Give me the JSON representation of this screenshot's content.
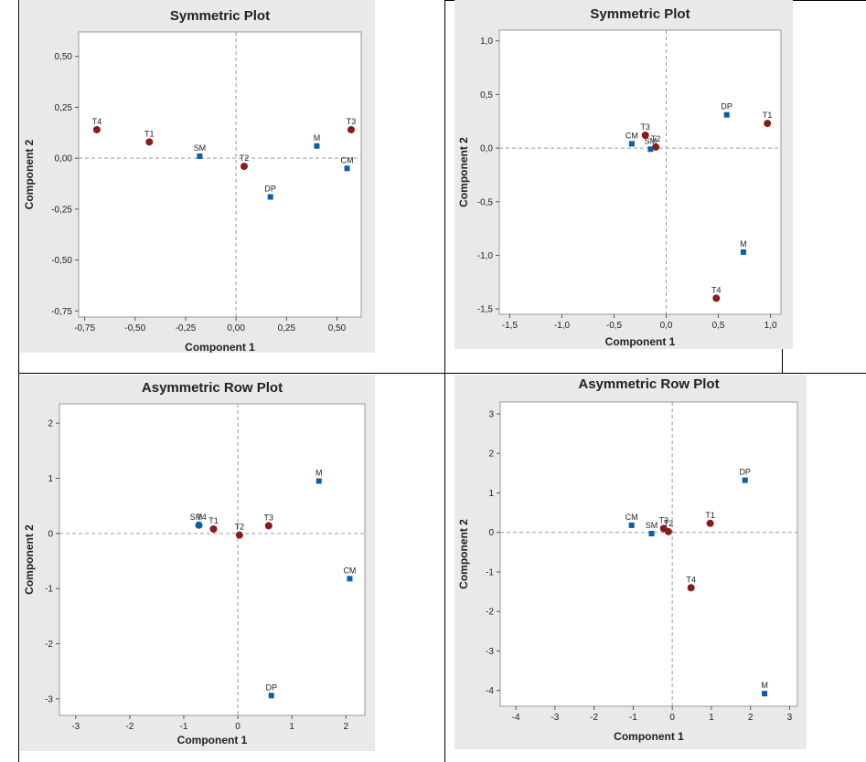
{
  "chart_data": [
    {
      "type": "scatter",
      "title": "Symmetric Plot",
      "xlabel": "Component 1",
      "ylabel": "Component 2",
      "xlim": [
        -0.78,
        0.62
      ],
      "ylim": [
        -0.78,
        0.62
      ],
      "xticks": [
        -0.75,
        -0.5,
        -0.25,
        0.0,
        0.25,
        0.5
      ],
      "xtick_labels": [
        "-0,75",
        "-0,50",
        "-0,25",
        "0,00",
        "0,25",
        "0,50"
      ],
      "yticks": [
        -0.75,
        -0.5,
        -0.25,
        0.0,
        0.25,
        0.5
      ],
      "ytick_labels": [
        "-0,75",
        "-0,50",
        "-0,25",
        "0,00",
        "0,25",
        "0,50"
      ],
      "reference_lines": {
        "x": 0,
        "y": 0
      },
      "grid": false,
      "series": [
        {
          "marker": "circle",
          "color": "#8b1a1a",
          "points": [
            {
              "label": "T4",
              "x": -0.69,
              "y": 0.14
            },
            {
              "label": "T1",
              "x": -0.43,
              "y": 0.08
            },
            {
              "label": "T2",
              "x": 0.04,
              "y": -0.04
            },
            {
              "label": "T3",
              "x": 0.57,
              "y": 0.14
            }
          ]
        },
        {
          "marker": "square",
          "color": "#0b5ea8",
          "points": [
            {
              "label": "SM",
              "x": -0.18,
              "y": 0.01
            },
            {
              "label": "DP",
              "x": 0.17,
              "y": -0.19
            },
            {
              "label": "M",
              "x": 0.4,
              "y": 0.06
            },
            {
              "label": "CM",
              "x": 0.55,
              "y": -0.05
            }
          ]
        }
      ]
    },
    {
      "type": "scatter",
      "title": "Symmetric Plot",
      "xlabel": "Component 1",
      "ylabel": "Component 2",
      "xlim": [
        -1.6,
        1.1
      ],
      "ylim": [
        -1.55,
        1.1
      ],
      "xticks": [
        -1.5,
        -1.0,
        -0.5,
        0.0,
        0.5,
        1.0
      ],
      "xtick_labels": [
        "-1,5",
        "-1,0",
        "-0,5",
        "0,0",
        "0,5",
        "1,0"
      ],
      "yticks": [
        -1.5,
        -1.0,
        -0.5,
        0.0,
        0.5,
        1.0
      ],
      "ytick_labels": [
        "-1,5",
        "-1,0",
        "-0,5",
        "0,0",
        "0,5",
        "1,0"
      ],
      "reference_lines": {
        "x": 0,
        "y": 0
      },
      "grid": false,
      "series": [
        {
          "marker": "circle",
          "color": "#8b1a1a",
          "points": [
            {
              "label": "T3",
              "x": -0.2,
              "y": 0.12
            },
            {
              "label": "T2",
              "x": -0.1,
              "y": 0.01
            },
            {
              "label": "T1",
              "x": 0.97,
              "y": 0.23
            },
            {
              "label": "T4",
              "x": 0.48,
              "y": -1.4
            }
          ]
        },
        {
          "marker": "square",
          "color": "#0b5ea8",
          "points": [
            {
              "label": "CM",
              "x": -0.33,
              "y": 0.04
            },
            {
              "label": "SM",
              "x": -0.15,
              "y": -0.01
            },
            {
              "label": "DP",
              "x": 0.58,
              "y": 0.31
            },
            {
              "label": "M",
              "x": 0.74,
              "y": -0.97
            }
          ]
        }
      ]
    },
    {
      "type": "scatter",
      "title": "Asymmetric Row Plot",
      "xlabel": "Component 1",
      "ylabel": "Component 2",
      "xlim": [
        -3.3,
        2.35
      ],
      "ylim": [
        -3.3,
        2.35
      ],
      "xticks": [
        -3,
        -2,
        -1,
        0,
        1,
        2
      ],
      "xtick_labels": [
        "-3",
        "-2",
        "-1",
        "0",
        "1",
        "2"
      ],
      "yticks": [
        -3,
        -2,
        -1,
        0,
        1,
        2
      ],
      "ytick_labels": [
        "-3",
        "-2",
        "-1",
        "0",
        "1",
        "2"
      ],
      "reference_lines": {
        "x": 0,
        "y": 0
      },
      "grid": false,
      "series": [
        {
          "marker": "circle",
          "color": "#8b1a1a",
          "points": [
            {
              "label": "T1",
              "x": -0.45,
              "y": 0.08
            },
            {
              "label": "T2",
              "x": 0.03,
              "y": -0.03
            },
            {
              "label": "T3",
              "x": 0.57,
              "y": 0.14
            }
          ]
        },
        {
          "marker": "circle",
          "color": "#1f5fa8",
          "points": [
            {
              "label": "T4",
              "x": -0.72,
              "y": 0.15
            }
          ]
        },
        {
          "marker": "square",
          "color": "#0b5ea8",
          "points": [
            {
              "label": "SM",
              "x": -0.72,
              "y": 0.15
            },
            {
              "label": "M",
              "x": 1.5,
              "y": 0.95
            },
            {
              "label": "CM",
              "x": 2.07,
              "y": -0.82
            },
            {
              "label": "DP",
              "x": 0.62,
              "y": -2.94
            }
          ]
        }
      ]
    },
    {
      "type": "scatter",
      "title": "Asymmetric Row Plot",
      "xlabel": "Component 1",
      "ylabel": "Component 2",
      "xlim": [
        -4.4,
        3.2
      ],
      "ylim": [
        -4.4,
        3.3
      ],
      "xticks": [
        -4,
        -3,
        -2,
        -1,
        0,
        1,
        2,
        3
      ],
      "xtick_labels": [
        "-4",
        "-3",
        "-2",
        "-1",
        "0",
        "1",
        "2",
        "3"
      ],
      "yticks": [
        -4,
        -3,
        -2,
        -1,
        0,
        1,
        2,
        3
      ],
      "ytick_labels": [
        "-4",
        "-3",
        "-2",
        "-1",
        "0",
        "1",
        "2",
        "3"
      ],
      "reference_lines": {
        "x": 0,
        "y": 0
      },
      "grid": false,
      "series": [
        {
          "marker": "circle",
          "color": "#8b1a1a",
          "points": [
            {
              "label": "T3",
              "x": -0.22,
              "y": 0.1
            },
            {
              "label": "T2",
              "x": -0.1,
              "y": 0.02
            },
            {
              "label": "T1",
              "x": 0.97,
              "y": 0.23
            },
            {
              "label": "T4",
              "x": 0.48,
              "y": -1.4
            }
          ]
        },
        {
          "marker": "square",
          "color": "#0b5ea8",
          "points": [
            {
              "label": "CM",
              "x": -1.04,
              "y": 0.18
            },
            {
              "label": "SM",
              "x": -0.53,
              "y": -0.03
            },
            {
              "label": "DP",
              "x": 1.86,
              "y": 1.32
            },
            {
              "label": "M",
              "x": 2.36,
              "y": -4.08
            }
          ]
        }
      ]
    }
  ]
}
